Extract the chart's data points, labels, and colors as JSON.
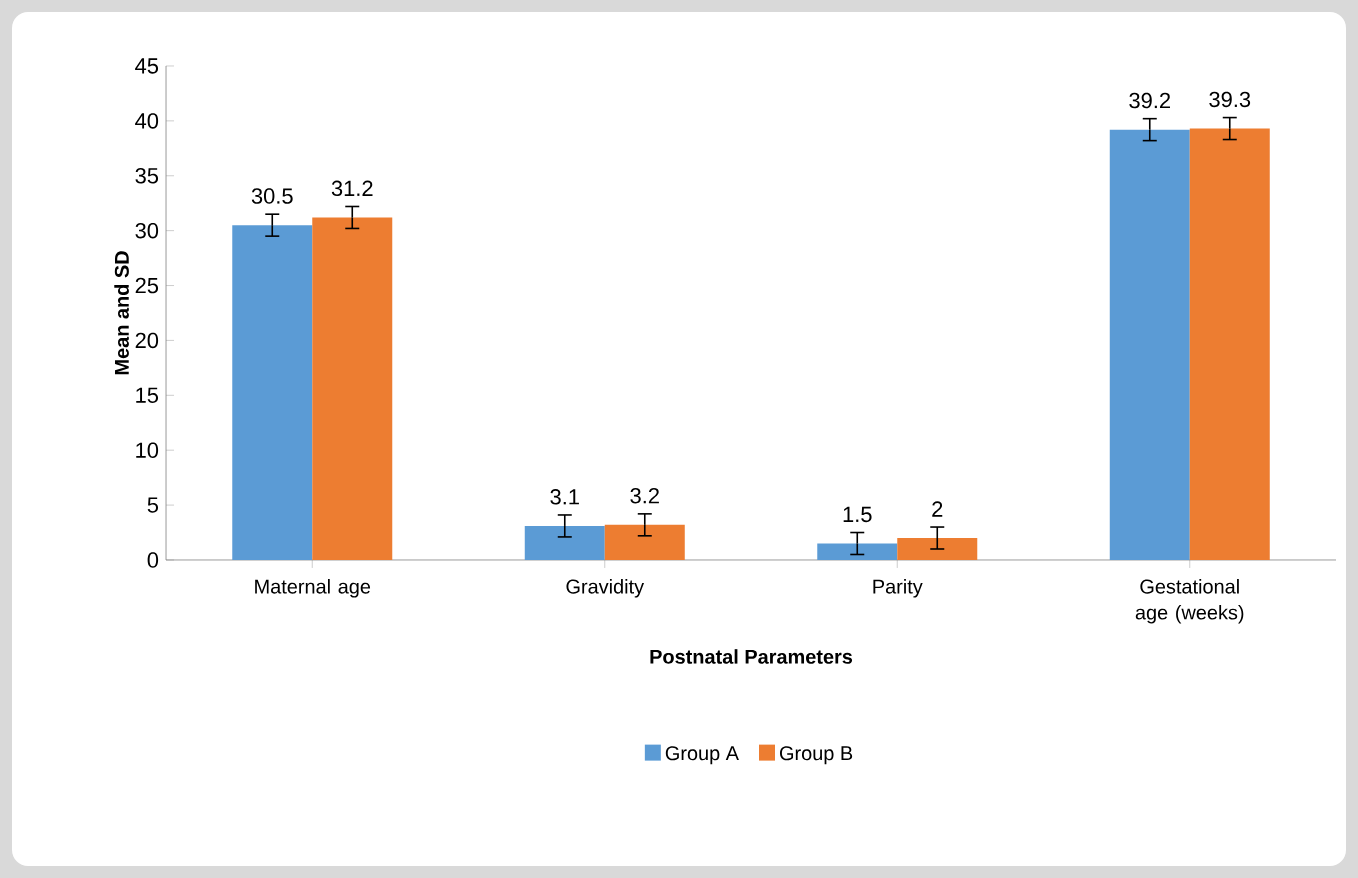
{
  "chart_data": {
    "type": "bar",
    "xlabel": "Postnatal Parameters",
    "ylabel": "Mean and SD",
    "categories": [
      "Maternal age",
      "Gravidity",
      "Parity",
      "Gestational age (weeks)"
    ],
    "series": [
      {
        "name": "Group A",
        "color": "#5b9bd5",
        "values": [
          30.5,
          3.1,
          1.5,
          39.2
        ],
        "errors": [
          1,
          1,
          1,
          1
        ]
      },
      {
        "name": "Group B",
        "color": "#ed7d31",
        "values": [
          31.2,
          3.2,
          2,
          39.3
        ],
        "errors": [
          1,
          1,
          1,
          1
        ]
      }
    ],
    "ylim": [
      0,
      45
    ],
    "yticks": [
      0,
      5,
      10,
      15,
      20,
      25,
      30,
      35,
      40,
      45
    ],
    "data_labels": true,
    "legend": "bottom",
    "grid": false
  }
}
